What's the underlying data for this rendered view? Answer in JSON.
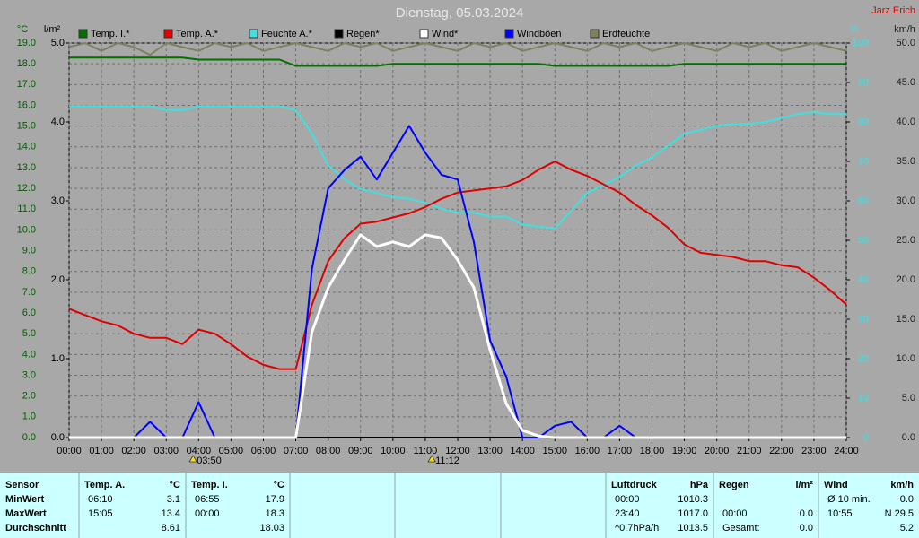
{
  "chart_data": {
    "type": "line",
    "title": "Dienstag, 05.03.2024",
    "station": "Jarz Erich",
    "ylabel": "°C",
    "y2label": "%",
    "y3label": "l/m²",
    "y4label": "km/h",
    "x": [
      0,
      0.5,
      1,
      1.5,
      2,
      2.5,
      3,
      3.5,
      4,
      4.5,
      5,
      5.5,
      6,
      6.5,
      7,
      7.5,
      8,
      8.5,
      9,
      9.5,
      10,
      10.5,
      11,
      11.5,
      12,
      12.5,
      13,
      13.5,
      14,
      14.5,
      15,
      15.5,
      16,
      16.5,
      17,
      17.5,
      18,
      18.5,
      19,
      19.5,
      20,
      20.5,
      21,
      21.5,
      22,
      22.5,
      23,
      23.5,
      24
    ],
    "xlim": [
      0,
      24
    ],
    "xticks": [
      {
        "value": 0,
        "label": "00:00"
      },
      {
        "value": 1,
        "label": "01:00"
      },
      {
        "value": 2,
        "label": "02:00"
      },
      {
        "value": 3,
        "label": "03:00"
      },
      {
        "value": 4,
        "label": "04:00"
      },
      {
        "value": 5,
        "label": "05:00"
      },
      {
        "value": 6,
        "label": "06:00"
      },
      {
        "value": 7,
        "label": "07:00"
      },
      {
        "value": 8,
        "label": "08:00"
      },
      {
        "value": 9,
        "label": "09:00"
      },
      {
        "value": 10,
        "label": "10:00"
      },
      {
        "value": 11,
        "label": "11:00"
      },
      {
        "value": 12,
        "label": "12:00"
      },
      {
        "value": 13,
        "label": "13:00"
      },
      {
        "value": 14,
        "label": "14:00"
      },
      {
        "value": 15,
        "label": "15:00"
      },
      {
        "value": 16,
        "label": "16:00"
      },
      {
        "value": 17,
        "label": "17:00"
      },
      {
        "value": 18,
        "label": "18:00"
      },
      {
        "value": 19,
        "label": "19:00"
      },
      {
        "value": 20,
        "label": "20:00"
      },
      {
        "value": 21,
        "label": "21:00"
      },
      {
        "value": 22,
        "label": "22:00"
      },
      {
        "value": 23,
        "label": "23:00"
      },
      {
        "value": 24,
        "label": "24:00"
      }
    ],
    "ylim": [
      0,
      19
    ],
    "yticks": [
      {
        "value": 0,
        "label": "0.0"
      },
      {
        "value": 1,
        "label": "1.0"
      },
      {
        "value": 2,
        "label": "2.0"
      },
      {
        "value": 3,
        "label": "3.0"
      },
      {
        "value": 4,
        "label": "4.0"
      },
      {
        "value": 5,
        "label": "5.0"
      },
      {
        "value": 6,
        "label": "6.0"
      },
      {
        "value": 7,
        "label": "7.0"
      },
      {
        "value": 8,
        "label": "8.0"
      },
      {
        "value": 9,
        "label": "9.0"
      },
      {
        "value": 10,
        "label": "10.0"
      },
      {
        "value": 11,
        "label": "11.0"
      },
      {
        "value": 12,
        "label": "12.0"
      },
      {
        "value": 13,
        "label": "13.0"
      },
      {
        "value": 14,
        "label": "14.0"
      },
      {
        "value": 15,
        "label": "15.0"
      },
      {
        "value": 16,
        "label": "16.0"
      },
      {
        "value": 17,
        "label": "17.0"
      },
      {
        "value": 18,
        "label": "18.0"
      },
      {
        "value": 19,
        "label": "19.0"
      }
    ],
    "y2lim": [
      0,
      100
    ],
    "y2ticks": [
      0,
      10,
      20,
      30,
      40,
      50,
      60,
      70,
      80,
      90,
      100
    ],
    "y3lim": [
      0,
      5
    ],
    "y3ticks": [
      {
        "value": 0,
        "label": "0.0"
      },
      {
        "value": 1,
        "label": "1.0"
      },
      {
        "value": 2,
        "label": "2.0"
      },
      {
        "value": 3,
        "label": "3.0"
      },
      {
        "value": 4,
        "label": "4.0"
      },
      {
        "value": 5,
        "label": "5.0"
      }
    ],
    "y4lim": [
      0,
      50
    ],
    "y4ticks": [
      {
        "value": 0,
        "label": "0.0"
      },
      {
        "value": 5,
        "label": "5.0"
      },
      {
        "value": 10,
        "label": "10.0"
      },
      {
        "value": 15,
        "label": "15.0"
      },
      {
        "value": 20,
        "label": "20.0"
      },
      {
        "value": 25,
        "label": "25.0"
      },
      {
        "value": 30,
        "label": "30.0"
      },
      {
        "value": 35,
        "label": "35.0"
      },
      {
        "value": 40,
        "label": "40.0"
      },
      {
        "value": 45,
        "label": "45.0"
      },
      {
        "value": 50,
        "label": "50.0"
      }
    ],
    "grid": true,
    "series": [
      {
        "name": "Temp. I.*",
        "color": "#007000",
        "axis": "y",
        "values": [
          18.3,
          18.3,
          18.3,
          18.3,
          18.3,
          18.3,
          18.3,
          18.3,
          18.2,
          18.2,
          18.2,
          18.2,
          18.2,
          18.2,
          17.9,
          17.9,
          17.9,
          17.9,
          17.9,
          17.9,
          18.0,
          18.0,
          18.0,
          18.0,
          18.0,
          18.0,
          18.0,
          18.0,
          18.0,
          18.0,
          17.9,
          17.9,
          17.9,
          17.9,
          17.9,
          17.9,
          17.9,
          17.9,
          18.0,
          18.0,
          18.0,
          18.0,
          18.0,
          18.0,
          18.0,
          18.0,
          18.0,
          18.0,
          18.0
        ]
      },
      {
        "name": "Temp. A.*",
        "color": "#e00000",
        "axis": "y",
        "values": [
          6.2,
          5.9,
          5.6,
          5.4,
          5.0,
          4.8,
          4.8,
          4.5,
          5.2,
          5.0,
          4.5,
          3.9,
          3.5,
          3.3,
          3.3,
          6.4,
          8.5,
          9.6,
          10.3,
          10.4,
          10.6,
          10.8,
          11.1,
          11.5,
          11.8,
          11.9,
          12.0,
          12.1,
          12.4,
          12.9,
          13.3,
          12.9,
          12.6,
          12.2,
          11.8,
          11.2,
          10.7,
          10.1,
          9.3,
          8.9,
          8.8,
          8.7,
          8.5,
          8.5,
          8.3,
          8.2,
          7.7,
          7.1,
          6.4
        ]
      },
      {
        "name": "Feuchte A.*",
        "color": "#40e0e0",
        "axis": "y2",
        "values": [
          84,
          84,
          84,
          84,
          84,
          84,
          83,
          83,
          84,
          84,
          84,
          84,
          84,
          84,
          83,
          77,
          69,
          65.5,
          63,
          62,
          61,
          60.5,
          59.5,
          58,
          57,
          57,
          56,
          56,
          54,
          53.5,
          53,
          57.5,
          62,
          64,
          66,
          69,
          71,
          74,
          77,
          78,
          79,
          79.5,
          79.5,
          80,
          81,
          82,
          82.5,
          82,
          82
        ]
      },
      {
        "name": "Regen*",
        "color": "#000000",
        "axis": "y3",
        "values": [
          0,
          0,
          0,
          0,
          0,
          0,
          0,
          0,
          0,
          0,
          0,
          0,
          0,
          0,
          0,
          0,
          0,
          0,
          0,
          0,
          0,
          0,
          0,
          0,
          0,
          0,
          0,
          0,
          0,
          0,
          0,
          0,
          0,
          0,
          0,
          0,
          0,
          0,
          0,
          0,
          0,
          0,
          0,
          0,
          0,
          0,
          0,
          0,
          0
        ]
      },
      {
        "name": "Wind*",
        "color": "#ffffff",
        "axis": "y4",
        "values": [
          0,
          0,
          0,
          0,
          0,
          0,
          0,
          0,
          0,
          0,
          0,
          0,
          0,
          0,
          0,
          13.4,
          19,
          22.5,
          25.7,
          24.2,
          24.8,
          24.2,
          25.7,
          25.3,
          22.5,
          19,
          11.1,
          4.3,
          0.9,
          0.2,
          0,
          0,
          0,
          0,
          0,
          0,
          0,
          0,
          0,
          0,
          0,
          0,
          0,
          0,
          0,
          0,
          0,
          0,
          0
        ]
      },
      {
        "name": "Windböen",
        "color": "#0000ff",
        "axis": "y4",
        "values": [
          0,
          0,
          0,
          0,
          0,
          2,
          0,
          0,
          4.5,
          0,
          0,
          0,
          0,
          0,
          0,
          21.4,
          31.6,
          33.9,
          35.6,
          32.7,
          36.1,
          39.5,
          36.1,
          33.3,
          32.7,
          24.8,
          12.3,
          7.7,
          0,
          0,
          1.5,
          2,
          0,
          0,
          1.5,
          0,
          0,
          0,
          0,
          0,
          0,
          0,
          0,
          0,
          0,
          0,
          0,
          0,
          0
        ]
      },
      {
        "name": "Erdfeuchte",
        "color": "#808060",
        "axis": "y2",
        "values": [
          99,
          100,
          98,
          100,
          99,
          97,
          100,
          99,
          98,
          100,
          99,
          100,
          98,
          99,
          100,
          99,
          98,
          100,
          99,
          100,
          98,
          99,
          100,
          99,
          98,
          100,
          99,
          100,
          98,
          99,
          100,
          99,
          98,
          100,
          99,
          100,
          98,
          99,
          100,
          99,
          98,
          100,
          99,
          100,
          98,
          99,
          100,
          99,
          98
        ]
      }
    ],
    "annotations": [
      {
        "x": 3.83,
        "label": "03:50"
      },
      {
        "x": 11.2,
        "label": "11:12"
      }
    ]
  },
  "table": {
    "header": [
      "Sensor",
      "Temp. A.",
      "°C",
      "Temp. I.",
      "°C",
      null,
      null,
      null,
      null,
      null,
      null,
      "Luftdruck",
      "hPa",
      "Regen",
      "l/m²",
      "Wind",
      "km/h"
    ],
    "rows": [
      [
        "MinWert",
        "06:10",
        "3.1",
        "06:55",
        "17.9",
        null,
        null,
        null,
        null,
        null,
        null,
        "00:00",
        "1010.3",
        null,
        null,
        "Ø 10 min.",
        "0.0"
      ],
      [
        "MaxWert",
        "15:05",
        "13.4",
        "00:00",
        "18.3",
        null,
        null,
        null,
        null,
        null,
        null,
        "23:40",
        "1017.0",
        "00:00",
        "0.0",
        "10:55",
        "N 29.5"
      ],
      [
        "Durchschnitt",
        null,
        "8.61",
        null,
        "18.03",
        null,
        null,
        null,
        null,
        null,
        null,
        "^0.7hPa/h",
        "1013.5",
        "Gesamt:",
        "0.0",
        null,
        "5.2"
      ]
    ]
  }
}
